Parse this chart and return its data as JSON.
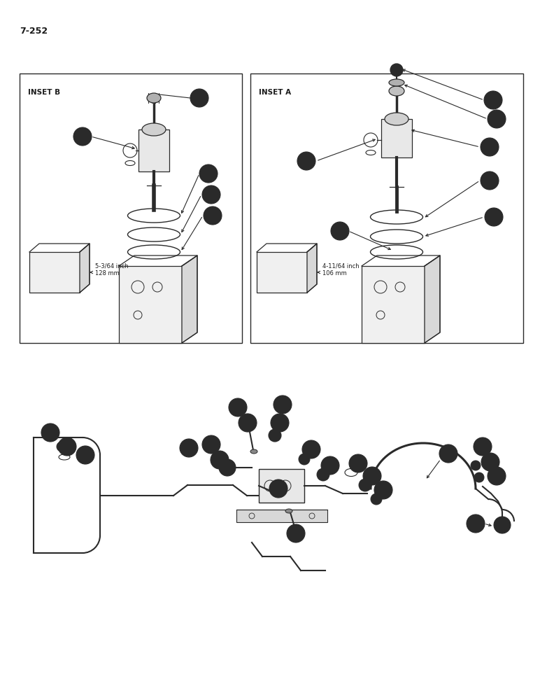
{
  "page_number": "7-252",
  "bg_color": "#ffffff",
  "line_color": "#2a2a2a",
  "text_color": "#1a1a1a",
  "inset_b_label": "INSET B",
  "inset_a_label": "INSET A",
  "inset_b_dims": "5-3/64 inch\n128 mm",
  "inset_a_dims": "4-11/64 inch\n106 mm",
  "font_size_label": 6.5,
  "font_size_title": 7.5,
  "font_size_page": 9,
  "font_size_dim": 6.0,
  "circle_r": 0.013
}
